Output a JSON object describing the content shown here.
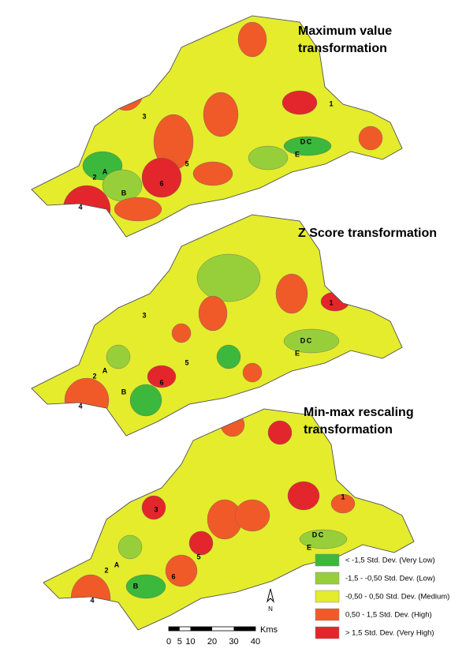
{
  "maps": [
    {
      "title_lines": [
        "Maximum value",
        "transformation"
      ],
      "markers": [
        "1",
        "2",
        "3",
        "4",
        "5",
        "6",
        "A",
        "B",
        "C",
        "D",
        "E"
      ]
    },
    {
      "title_lines": [
        "Z Score transformation"
      ],
      "markers": [
        "1",
        "2",
        "3",
        "4",
        "5",
        "6",
        "A",
        "B",
        "C",
        "D",
        "E"
      ]
    },
    {
      "title_lines": [
        "Min-max rescaling",
        "transformation"
      ],
      "markers": [
        "1",
        "2",
        "3",
        "4",
        "5",
        "6",
        "A",
        "B",
        "C",
        "D",
        "E"
      ]
    }
  ],
  "legend": [
    {
      "label": "< -1,5  Std. Dev. (Very Low)",
      "color": "#3cb83c"
    },
    {
      "label": "-1,5 - -0,50 Std. Dev. (Low)",
      "color": "#97cf3a"
    },
    {
      "label": "-0,50 - 0,50 Std. Dev. (Medium)",
      "color": "#e4ec2c"
    },
    {
      "label": "0,50 - 1,5 Std. Dev. (High)",
      "color": "#f05a28"
    },
    {
      "label": "> 1,5  Std. Dev. (Very High)",
      "color": "#e3262b"
    }
  ],
  "scale": {
    "ticks": [
      0,
      5,
      10,
      20,
      30,
      40
    ],
    "unit": "Kms"
  },
  "north": "N"
}
